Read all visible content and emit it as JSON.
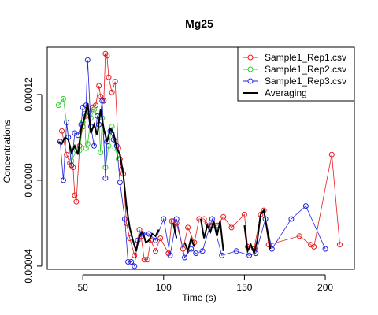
{
  "chart_data": {
    "type": "scatter",
    "title": "Mg25",
    "xlabel": "Time (s)",
    "ylabel": "Concentrations",
    "xlim": [
      28,
      218
    ],
    "ylim": [
      3.85e-05,
      0.000142
    ],
    "x_ticks": [
      50,
      100,
      150,
      200
    ],
    "y_ticks": [
      "0.00004",
      "0.00008",
      "0.00012"
    ],
    "y_tick_values": [
      4e-05,
      8e-05,
      0.00012
    ],
    "grid": false,
    "legend_position": "top-right",
    "colors": {
      "rep1": "#e41a1c",
      "rep2": "#33cc33",
      "rep3": "#2222dd",
      "avg": "#000000"
    },
    "series": [
      {
        "name": "Sample1_Rep1.csv",
        "style": "points+lines",
        "color": "#e41a1c",
        "points": [
          [
            37,
            0.000103
          ],
          [
            40,
            9.2e-05
          ],
          [
            42,
            8.8e-05
          ],
          [
            44,
            8.6e-05
          ],
          [
            45,
            7.3e-05
          ],
          [
            46,
            7e-05
          ],
          [
            48,
            9.6e-05
          ],
          [
            50,
            0.000105
          ],
          [
            52,
            0.00011
          ],
          [
            54,
            0.000112
          ],
          [
            56,
            0.000114
          ],
          [
            58,
            0.000115
          ],
          [
            60,
            0.000124
          ],
          [
            61,
            0.000119
          ],
          [
            63,
            0.000117
          ],
          [
            64,
            0.000139
          ],
          [
            65,
            0.000138
          ],
          [
            66,
            0.000128
          ],
          [
            68,
            0.000121
          ],
          [
            70,
            0.000126
          ],
          [
            72,
            9.5e-05
          ],
          [
            73,
            9e-05
          ],
          [
            74,
            8.5e-05
          ],
          [
            75,
            8.3e-05
          ],
          [
            77,
            6e-05
          ],
          [
            79,
            5.3e-05
          ],
          [
            82,
            4.5e-05
          ],
          [
            84,
            5.2e-05
          ],
          [
            85,
            5.7e-05
          ],
          [
            86,
            5.4e-05
          ],
          [
            88,
            4.3e-05
          ],
          [
            90,
            4.3e-05
          ],
          [
            92,
            5.2e-05
          ],
          [
            95,
            4.7e-05
          ],
          [
            98,
            5.3e-05
          ],
          [
            103,
            4.6e-05
          ],
          [
            105,
            6.1e-05
          ],
          [
            106,
            6.1e-05
          ],
          [
            108,
            6e-05
          ],
          [
            112,
            4.8e-05
          ],
          [
            115,
            5.8e-05
          ],
          [
            119,
            5.1e-05
          ],
          [
            122,
            6.2e-05
          ],
          [
            125,
            6.2e-05
          ],
          [
            127,
            6e-05
          ],
          [
            130,
            5.9e-05
          ],
          [
            133,
            5.9e-05
          ],
          [
            137,
            6.3e-05
          ],
          [
            142,
            5.8e-05
          ],
          [
            150,
            6.4e-05
          ],
          [
            152,
            4.9e-05
          ],
          [
            156,
            4.8e-05
          ],
          [
            160,
            6.4e-05
          ],
          [
            162,
            6.6e-05
          ],
          [
            165,
            5e-05
          ],
          [
            184,
            5.4e-05
          ],
          [
            191,
            5e-05
          ],
          [
            193,
            4.9e-05
          ],
          [
            204,
            9.2e-05
          ],
          [
            209,
            5e-05
          ]
        ]
      },
      {
        "name": "Sample1_Rep2.csv",
        "style": "points+lines",
        "color": "#33cc33",
        "points": [
          [
            35,
            0.000115
          ],
          [
            38,
            0.000118
          ],
          [
            43,
            8.9e-05
          ],
          [
            46,
            9.4e-05
          ],
          [
            48,
            9.4e-05
          ],
          [
            50,
            0.000107
          ],
          [
            51,
            0.000111
          ],
          [
            52,
            9.5e-05
          ],
          [
            53,
            9.7e-05
          ],
          [
            55,
            0.000109
          ],
          [
            57,
            0.000113
          ],
          [
            59,
            0.00011
          ],
          [
            60,
            0.000106
          ],
          [
            61,
            9.3e-05
          ],
          [
            62,
            0.000109
          ],
          [
            64,
            8.6e-05
          ],
          [
            66,
            9.6e-05
          ],
          [
            68,
            0.000105
          ],
          [
            70,
            9.5e-05
          ],
          [
            72,
            9e-05
          ]
        ]
      },
      {
        "name": "Sample1_Rep3.csv",
        "style": "points+lines",
        "color": "#2222dd",
        "points": [
          [
            36,
            9.8e-05
          ],
          [
            38,
            8e-05
          ],
          [
            40,
            0.000107
          ],
          [
            41,
            0.0001
          ],
          [
            43,
            8.7e-05
          ],
          [
            45,
            0.000102
          ],
          [
            47,
            0.000101
          ],
          [
            49,
            0.000106
          ],
          [
            50,
            0.000114
          ],
          [
            52,
            0.000115
          ],
          [
            53,
            0.000136
          ],
          [
            55,
            0.000105
          ],
          [
            57,
            9.6e-05
          ],
          [
            59,
            0.00011
          ],
          [
            60,
            0.000106
          ],
          [
            62,
            0.000117
          ],
          [
            64,
            8.1e-05
          ],
          [
            65,
            9.8e-05
          ],
          [
            67,
            0.000103
          ],
          [
            69,
            9.9e-05
          ],
          [
            71,
            9.6e-05
          ],
          [
            73,
            7.9e-05
          ],
          [
            76,
            6.2e-05
          ],
          [
            78,
            4.2e-05
          ],
          [
            80,
            4.2e-05
          ],
          [
            82,
            4e-05
          ],
          [
            84,
            5.2e-05
          ],
          [
            87,
            5.5e-05
          ],
          [
            91,
            5.5e-05
          ],
          [
            95,
            5.2e-05
          ],
          [
            100,
            6.2e-05
          ],
          [
            104,
            4.5e-05
          ],
          [
            108,
            6.2e-05
          ],
          [
            113,
            4.4e-05
          ],
          [
            117,
            4.8e-05
          ],
          [
            120,
            4.6e-05
          ],
          [
            124,
            4.7e-05
          ],
          [
            130,
            6.2e-05
          ],
          [
            136,
            4.5e-05
          ],
          [
            145,
            4.7e-05
          ],
          [
            153,
            4.5e-05
          ],
          [
            157,
            4.6e-05
          ],
          [
            163,
            6.2e-05
          ],
          [
            167,
            4.8e-05
          ],
          [
            179,
            6.2e-05
          ],
          [
            188,
            6.8e-05
          ],
          [
            200,
            4.8e-05
          ]
        ]
      },
      {
        "name": "Averaging",
        "style": "line",
        "color": "#000000",
        "segments": [
          [
            [
              35,
              9.8e-05
            ],
            [
              37,
              9.7e-05
            ],
            [
              39,
              0.0001
            ],
            [
              41,
              9.9e-05
            ],
            [
              43,
              9.3e-05
            ],
            [
              45,
              9.6e-05
            ],
            [
              47,
              9.2e-05
            ],
            [
              49,
              0.000104
            ],
            [
              51,
              0.000109
            ],
            [
              53,
              0.000116
            ],
            [
              55,
              0.000102
            ],
            [
              57,
              0.000106
            ],
            [
              59,
              0.000101
            ],
            [
              61,
              0.000113
            ],
            [
              63,
              0.000104
            ],
            [
              65,
              9.8e-05
            ],
            [
              67,
              0.000104
            ],
            [
              69,
              0.000102
            ],
            [
              71,
              9.5e-05
            ],
            [
              73,
              9.2e-05
            ],
            [
              75,
              8.3e-05
            ],
            [
              77,
              6.8e-05
            ],
            [
              79,
              5.8e-05
            ],
            [
              81,
              5.2e-05
            ],
            [
              83,
              4.7e-05
            ],
            [
              85,
              5.4e-05
            ],
            [
              87,
              5.6e-05
            ],
            [
              89,
              5.1e-05
            ],
            [
              91,
              5.2e-05
            ],
            [
              93,
              5.5e-05
            ],
            [
              95,
              5.4e-05
            ],
            [
              97,
              5.7e-05
            ]
          ],
          [
            [
              106,
              6e-05
            ],
            [
              108,
              5.3e-05
            ]
          ],
          [
            [
              113,
              5.1e-05
            ],
            [
              115,
              4.7e-05
            ],
            [
              117,
              5.3e-05
            ],
            [
              119,
              4.9e-05
            ]
          ],
          [
            [
              123,
              6.2e-05
            ],
            [
              125,
              5.3e-05
            ],
            [
              127,
              5.9e-05
            ],
            [
              129,
              5.6e-05
            ],
            [
              131,
              6.1e-05
            ],
            [
              133,
              5.4e-05
            ],
            [
              135,
              6.1e-05
            ],
            [
              137,
              4.7e-05
            ]
          ],
          [
            [
              150,
              5.9e-05
            ],
            [
              152,
              4.7e-05
            ],
            [
              154,
              5e-05
            ],
            [
              156,
              4.6e-05
            ],
            [
              158,
              5.2e-05
            ],
            [
              160,
              6.4e-05
            ],
            [
              162,
              6.6e-05
            ],
            [
              164,
              5.7e-05
            ],
            [
              166,
              4.8e-05
            ]
          ]
        ]
      }
    ]
  }
}
